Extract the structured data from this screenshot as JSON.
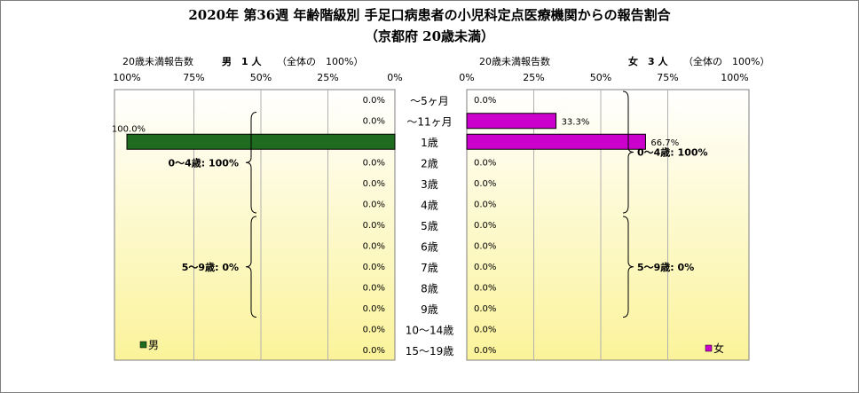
{
  "title_line1": "2020年 第36週 年齢階級別 手足口病患者の小児科定点医療機関からの報告割合",
  "title_line2": "（京都府 20歳未満）",
  "left_header": {
    "label": "20歳未満報告数",
    "count": "男　1 人",
    "total": "（全体の　100%）"
  },
  "right_header": {
    "label": "20歳未満報告数",
    "count": "女　3 人",
    "total": "（全体の　100%）"
  },
  "colors": {
    "male_bar": "#1f6b1f",
    "female_bar": "#cc00cc",
    "plot_top": "#ffffff",
    "plot_bottom": "#fbf39a"
  },
  "chart_data": [
    {
      "type": "bar",
      "orientation": "horizontal",
      "direction": "right-to-left",
      "series": [
        {
          "name": "男",
          "values": [
            0.0,
            0.0,
            100.0,
            0.0,
            0.0,
            0.0,
            0.0,
            0.0,
            0.0,
            0.0,
            0.0,
            0.0,
            0.0
          ]
        }
      ],
      "value_labels": [
        "0.0%",
        "0.0%",
        "100.0%",
        "0.0%",
        "0.0%",
        "0.0%",
        "0.0%",
        "0.0%",
        "0.0%",
        "0.0%",
        "0.0%",
        "0.0%",
        "0.0%"
      ],
      "xlim": [
        0,
        100
      ],
      "x_ticks": [
        "100%",
        "75%",
        "50%",
        "25%",
        "0%"
      ],
      "legend": "男",
      "legend_position": "bottom-left",
      "grid": true,
      "groups": [
        {
          "label": "0～4歳: 100%",
          "from": 1,
          "to": 5
        },
        {
          "label": "5～9歳: 0%",
          "from": 6,
          "to": 10
        }
      ]
    },
    {
      "type": "bar",
      "orientation": "horizontal",
      "direction": "left-to-right",
      "series": [
        {
          "name": "女",
          "values": [
            0.0,
            33.3,
            66.7,
            0.0,
            0.0,
            0.0,
            0.0,
            0.0,
            0.0,
            0.0,
            0.0,
            0.0,
            0.0
          ]
        }
      ],
      "value_labels": [
        "0.0%",
        "33.3%",
        "66.7%",
        "0.0%",
        "0.0%",
        "0.0%",
        "0.0%",
        "0.0%",
        "0.0%",
        "0.0%",
        "0.0%",
        "0.0%",
        "0.0%"
      ],
      "xlim": [
        0,
        100
      ],
      "x_ticks": [
        "0%",
        "25%",
        "50%",
        "75%",
        "100%"
      ],
      "legend": "女",
      "legend_position": "bottom-right",
      "grid": true,
      "groups": [
        {
          "label": "0～4歳: 100%",
          "from": 0,
          "to": 5
        },
        {
          "label": "5～9歳: 0%",
          "from": 6,
          "to": 10
        }
      ]
    }
  ],
  "categories": [
    "～5ヶ月",
    "～11ヶ月",
    "1歳",
    "2歳",
    "3歳",
    "4歳",
    "5歳",
    "6歳",
    "7歳",
    "8歳",
    "9歳",
    "10～14歳",
    "15～19歳"
  ]
}
